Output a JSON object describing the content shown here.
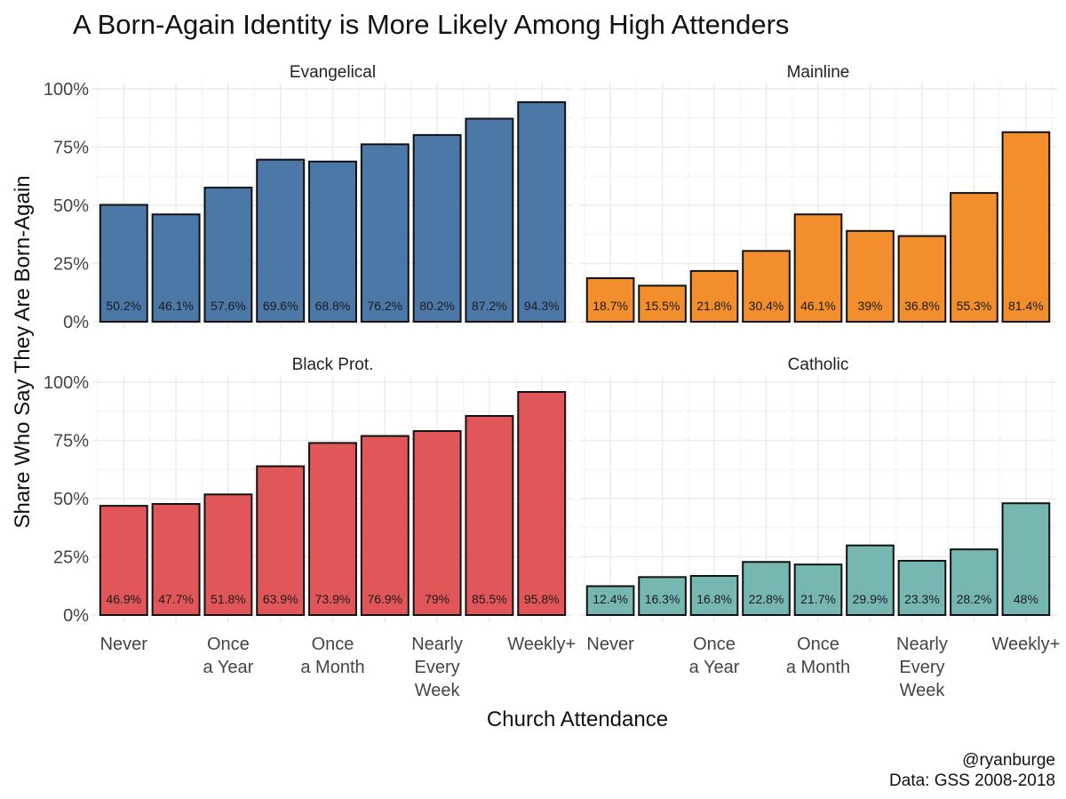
{
  "chart_data": {
    "type": "bar",
    "title": "A Born-Again Identity is More Likely Among High Attenders",
    "xlabel": "Church Attendance",
    "ylabel": "Share Who Say They Are Born-Again",
    "ylim": [
      0,
      1
    ],
    "y_ticks": [
      "0%",
      "25%",
      "50%",
      "75%",
      "100%"
    ],
    "y_tick_values": [
      0,
      0.25,
      0.5,
      0.75,
      1.0
    ],
    "grid": true,
    "categories": [
      "1",
      "2",
      "3",
      "4",
      "5",
      "6",
      "7",
      "8",
      "9"
    ],
    "x_tick_labels": [
      {
        "index": 0,
        "lines": [
          "Never"
        ]
      },
      {
        "index": 2,
        "lines": [
          "Once",
          "a Year"
        ]
      },
      {
        "index": 4,
        "lines": [
          "Once",
          "a Month"
        ]
      },
      {
        "index": 6,
        "lines": [
          "Nearly",
          "Every",
          "Week"
        ]
      },
      {
        "index": 8,
        "lines": [
          "Weekly+"
        ]
      }
    ],
    "panels": [
      {
        "name": "Evangelical",
        "color": "#4C78A8",
        "values": [
          0.502,
          0.461,
          0.576,
          0.696,
          0.688,
          0.762,
          0.802,
          0.872,
          0.943
        ],
        "labels": [
          "50.2%",
          "46.1%",
          "57.6%",
          "69.6%",
          "68.8%",
          "76.2%",
          "80.2%",
          "87.2%",
          "94.3%"
        ]
      },
      {
        "name": "Mainline",
        "color": "#F28E2B",
        "values": [
          0.187,
          0.155,
          0.218,
          0.304,
          0.461,
          0.39,
          0.368,
          0.553,
          0.814
        ],
        "labels": [
          "18.7%",
          "15.5%",
          "21.8%",
          "30.4%",
          "46.1%",
          "39%",
          "36.8%",
          "55.3%",
          "81.4%"
        ]
      },
      {
        "name": "Black Prot.",
        "color": "#E15759",
        "values": [
          0.469,
          0.477,
          0.518,
          0.639,
          0.739,
          0.769,
          0.79,
          0.855,
          0.958
        ],
        "labels": [
          "46.9%",
          "47.7%",
          "51.8%",
          "63.9%",
          "73.9%",
          "76.9%",
          "79%",
          "85.5%",
          "95.8%"
        ]
      },
      {
        "name": "Catholic",
        "color": "#76B7B2",
        "values": [
          0.124,
          0.163,
          0.168,
          0.228,
          0.217,
          0.299,
          0.233,
          0.282,
          0.48
        ],
        "labels": [
          "12.4%",
          "16.3%",
          "16.8%",
          "22.8%",
          "21.7%",
          "29.9%",
          "23.3%",
          "28.2%",
          "48%"
        ]
      }
    ],
    "caption": [
      "@ryanburge",
      "Data: GSS 2008-2018"
    ]
  }
}
